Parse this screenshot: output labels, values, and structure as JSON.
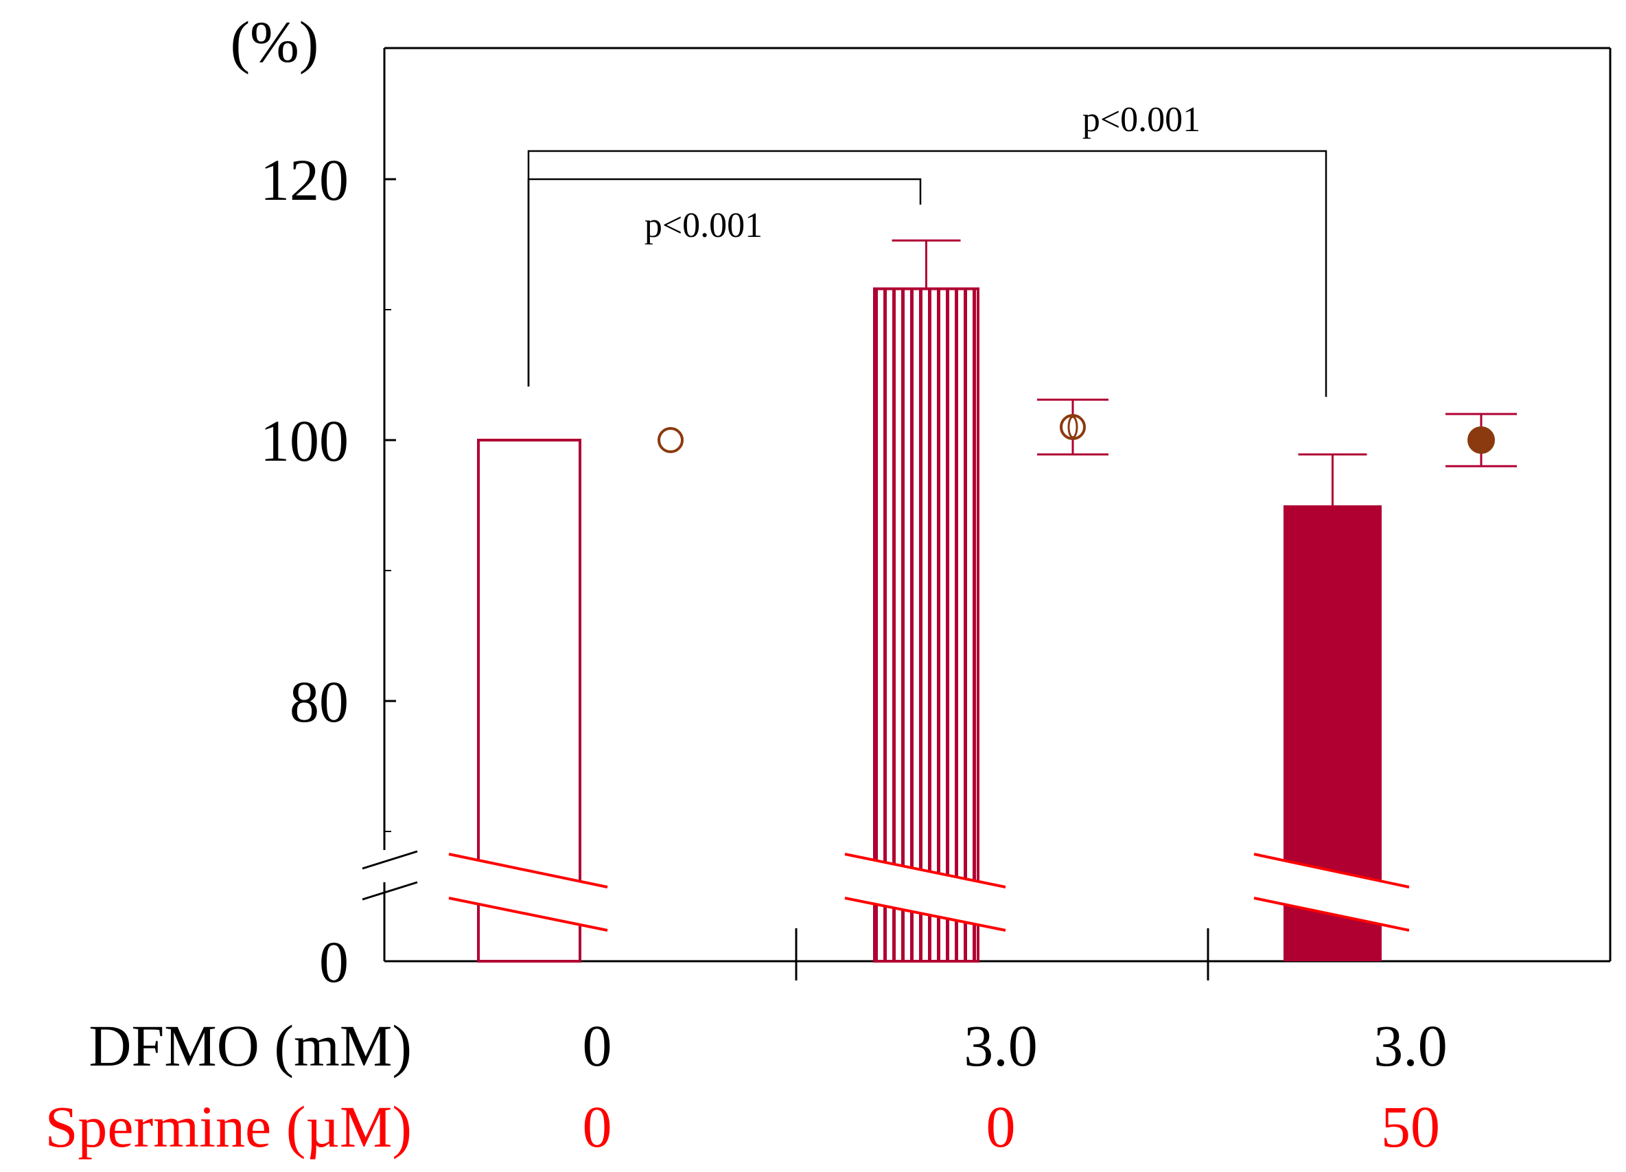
{
  "chart_data": {
    "type": "bar",
    "ylabel": "(%)",
    "y_ticks": [
      "120",
      "100",
      "80",
      "0"
    ],
    "y_axis_break": true,
    "groups": [
      {
        "dfmo": "0",
        "spermine": "0",
        "bar": {
          "value": 100,
          "error": 0,
          "fill": "outline"
        },
        "point": {
          "value": 100,
          "error": 0,
          "marker": "open"
        }
      },
      {
        "dfmo": "3.0",
        "spermine": "0",
        "bar": {
          "value": 111.6,
          "error": 3.7,
          "fill": "striped"
        },
        "point": {
          "value": 101,
          "error": 2.1,
          "marker": "half"
        }
      },
      {
        "dfmo": "3.0",
        "spermine": "50",
        "bar": {
          "value": 95,
          "error": 3.9,
          "fill": "solid"
        },
        "point": {
          "value": 100,
          "error": 2.0,
          "marker": "filled"
        }
      }
    ],
    "row_labels": {
      "dfmo": "DFMO (mM)",
      "spermine": "Spermine (µM)"
    },
    "significance": [
      {
        "from_group": 0,
        "to_group": 1,
        "label": "p<0.001"
      },
      {
        "from_group": 0,
        "to_group": 2,
        "label": "p<0.001"
      }
    ],
    "colors": {
      "bar": "#b00032",
      "marker": "#8b3a0f",
      "spermine_text": "#ff0000",
      "break": "#ff0000",
      "axis": "#000000"
    }
  }
}
